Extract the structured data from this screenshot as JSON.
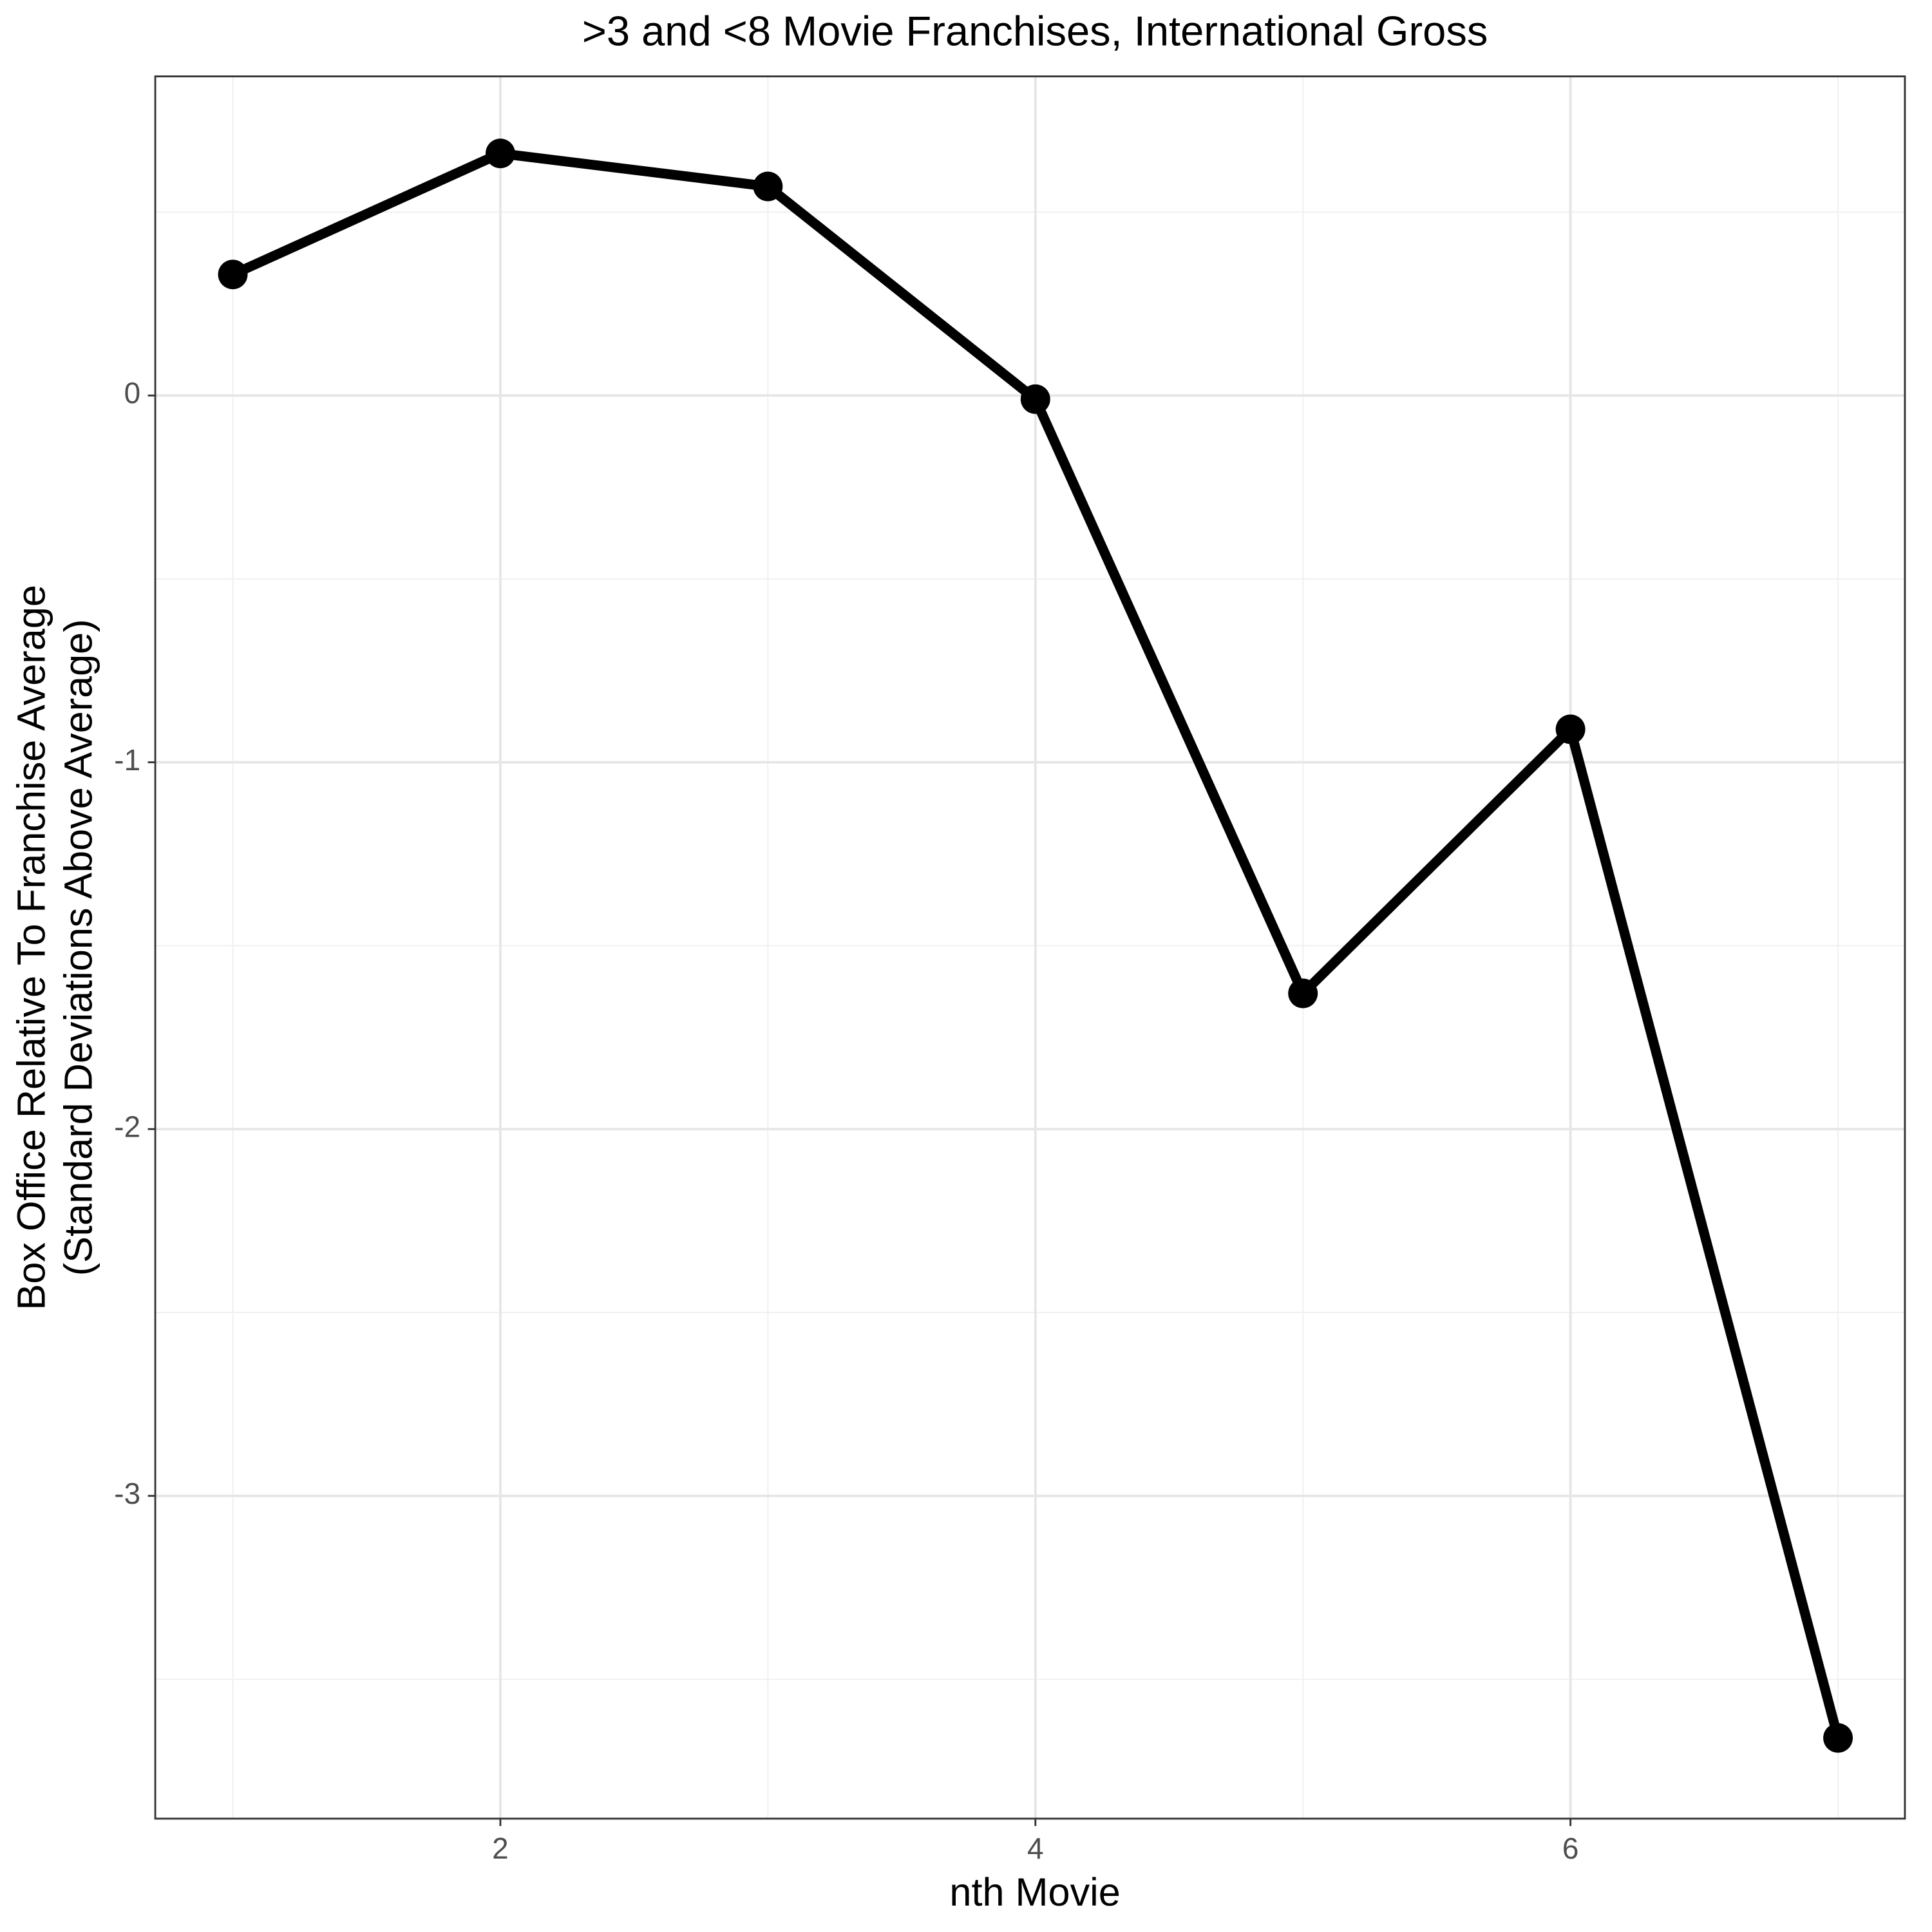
{
  "chart_data": {
    "type": "line",
    "title": ">3 and <8 Movie Franchises, International Gross",
    "xlabel": "nth Movie",
    "ylabel": [
      "Box Office Relative To Franchise Average",
      "(Standard Deviations Above Average)"
    ],
    "x": [
      1,
      2,
      3,
      4,
      5,
      6,
      7
    ],
    "series": [
      {
        "color": "#000000",
        "values": [
          0.33,
          0.66,
          0.57,
          -0.01,
          -1.63,
          -0.91,
          -3.66
        ]
      }
    ],
    "xlim": [
      0.71,
      7.25
    ],
    "ylim": [
      -3.88,
      0.87
    ],
    "xticks": [
      2,
      4,
      6
    ],
    "yticks": [
      -3,
      -2,
      -1,
      0
    ],
    "grid": true
  }
}
